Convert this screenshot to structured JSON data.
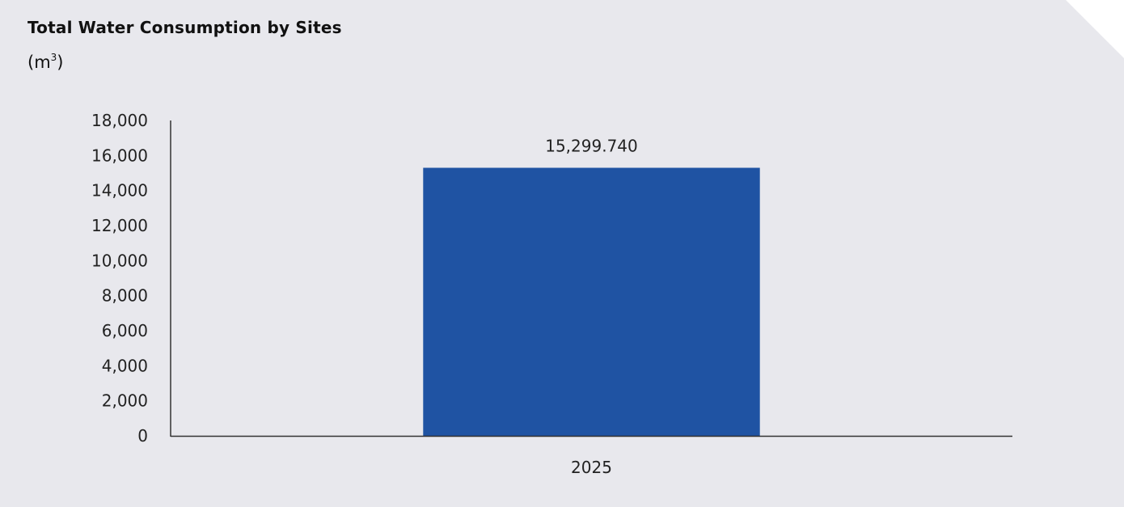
{
  "chart_data": {
    "type": "bar",
    "title": "Total Water Consumption by Sites",
    "unit_prefix": "(m",
    "unit_superscript": "3",
    "unit_suffix": ")",
    "categories": [
      "2025"
    ],
    "values": [
      15299.74
    ],
    "data_labels": [
      "15,299.740"
    ],
    "ylim": [
      0,
      18000
    ],
    "yticks": [
      0,
      2000,
      4000,
      6000,
      8000,
      10000,
      12000,
      14000,
      16000,
      18000
    ],
    "ytick_labels": [
      "0",
      "2,000",
      "4,000",
      "6,000",
      "8,000",
      "10,000",
      "12,000",
      "14,000",
      "16,000",
      "18,000"
    ],
    "grid": false,
    "legend": "none",
    "colors": {
      "bar": "#1f53a3",
      "axis": "#333333",
      "background": "#e8e8ed",
      "text": "#222222"
    }
  }
}
